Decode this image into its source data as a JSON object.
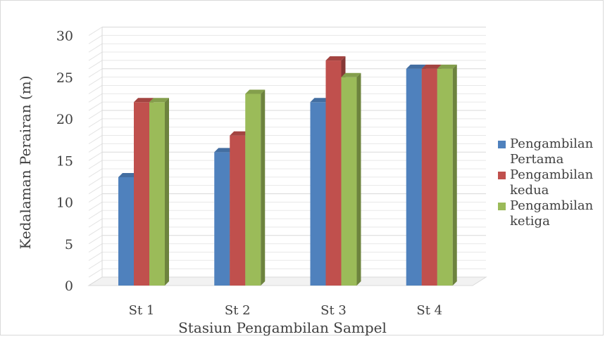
{
  "chart_data": {
    "type": "bar",
    "title": "",
    "xlabel": "Stasiun Pengambilan Sampel",
    "ylabel": "Kedalaman Perairan (m)",
    "categories": [
      "St 1",
      "St 2",
      "St 3",
      "St 4"
    ],
    "ylim": [
      0,
      30
    ],
    "yticks": [
      0,
      5,
      10,
      15,
      20,
      25,
      30
    ],
    "series": [
      {
        "name": "Pengambilan Pertama",
        "legend_lines": [
          "Pengambilan",
          "Pertama"
        ],
        "values": [
          13,
          16,
          22,
          26
        ],
        "color": "#4f81bd"
      },
      {
        "name": "Pengambilan kedua",
        "legend_lines": [
          "Pengambilan",
          "kedua"
        ],
        "values": [
          22,
          18,
          27,
          26
        ],
        "color": "#c0504d"
      },
      {
        "name": "Pengambilan ketiga",
        "legend_lines": [
          "Pengambilan",
          "ketiga"
        ],
        "values": [
          22,
          23,
          25,
          26
        ],
        "color": "#9bbb59"
      }
    ],
    "grid": true,
    "legend": "right",
    "style": "3d-clustered-column"
  }
}
